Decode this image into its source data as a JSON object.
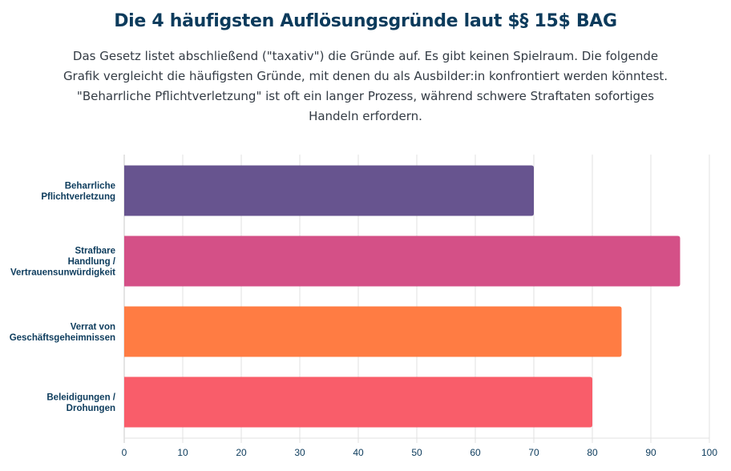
{
  "header": {
    "title": "Die 4 häufigsten Auflösungsgründe laut $§ 15$ BAG",
    "subtitle": "Das Gesetz listet abschließend (\"taxativ\") die Gründe auf. Es gibt keinen Spielraum. Die folgende Grafik vergleicht die häufigsten Gründe, mit denen du als Ausbilder:in konfrontiert werden könntest. \"Beharrliche Pflichtverletzung\" ist oft ein langer Prozess, während schwere Straftaten sofortiges Handeln erfordern."
  },
  "chart_data": {
    "type": "bar",
    "orientation": "horizontal",
    "title": "Die 4 häufigsten Auflösungsgründe laut $§ 15$ BAG",
    "xlabel": "",
    "ylabel": "",
    "categories": [
      [
        "Beharrliche",
        "Pflichtverletzung"
      ],
      [
        "Strafbare",
        "Handlung /",
        "Vertrauensunwürdigkeit"
      ],
      [
        "Verrat von",
        "Geschäftsgeheimnissen"
      ],
      [
        "Beleidigungen /",
        "Drohungen"
      ]
    ],
    "values": [
      70,
      95,
      85,
      80
    ],
    "colors": [
      "#67548f",
      "#d45087",
      "#ff7c43",
      "#f95d6a"
    ],
    "xlim": [
      0,
      100
    ],
    "xticks": [
      0,
      10,
      20,
      30,
      40,
      50,
      60,
      70,
      80,
      90,
      100
    ],
    "grid": true,
    "legend": "none"
  }
}
